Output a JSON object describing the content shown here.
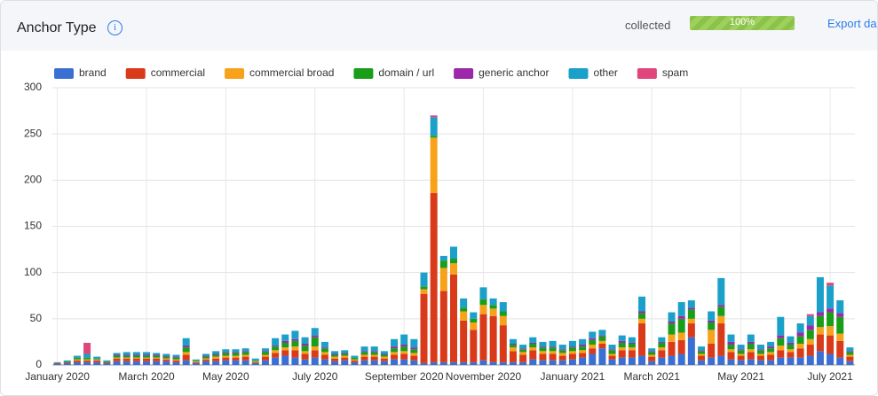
{
  "header": {
    "title": "Anchor Type",
    "status": "collected",
    "progress": "100%",
    "export": "Export da"
  },
  "chart_data": {
    "type": "bar",
    "stacked": true,
    "categories": [
      "January 2020",
      null,
      null,
      null,
      null,
      null,
      null,
      null,
      null,
      "March 2020",
      null,
      null,
      null,
      null,
      null,
      null,
      null,
      "May 2020",
      null,
      null,
      null,
      null,
      null,
      null,
      null,
      null,
      "July 2020",
      null,
      null,
      null,
      null,
      null,
      null,
      null,
      null,
      "September 2020",
      null,
      null,
      null,
      null,
      null,
      null,
      null,
      "November 2020",
      null,
      null,
      null,
      null,
      null,
      null,
      null,
      null,
      "January 2021",
      null,
      null,
      null,
      null,
      null,
      null,
      null,
      "March 2021",
      null,
      null,
      null,
      null,
      null,
      null,
      null,
      null,
      "May 2021",
      null,
      null,
      null,
      null,
      null,
      null,
      null,
      null,
      "July 2021",
      null,
      null
    ],
    "ylim": [
      0,
      300
    ],
    "yticks": [
      0,
      50,
      100,
      150,
      200,
      250,
      300
    ],
    "grid": true,
    "legend": "top",
    "series": [
      {
        "name": "brand",
        "color": "#3b6fd4",
        "values": [
          1,
          2,
          3,
          3,
          3,
          2,
          4,
          4,
          4,
          4,
          4,
          4,
          3,
          5,
          2,
          4,
          4,
          5,
          5,
          5,
          2,
          5,
          8,
          10,
          8,
          6,
          8,
          6,
          4,
          5,
          3,
          5,
          5,
          4,
          6,
          6,
          5,
          2,
          3,
          3,
          3,
          3,
          3,
          5,
          3,
          3,
          3,
          3,
          6,
          5,
          5,
          5,
          6,
          8,
          12,
          18,
          6,
          8,
          8,
          10,
          4,
          8,
          10,
          12,
          30,
          5,
          8,
          10,
          6,
          5,
          6,
          5,
          5,
          8,
          8,
          8,
          10,
          15,
          12,
          8,
          4
        ]
      },
      {
        "name": "commercial",
        "color": "#d93a1a",
        "values": [
          1,
          1,
          2,
          2,
          2,
          1,
          3,
          3,
          3,
          3,
          3,
          2,
          2,
          6,
          1,
          2,
          3,
          3,
          3,
          4,
          1,
          4,
          5,
          6,
          8,
          6,
          8,
          5,
          3,
          3,
          2,
          4,
          4,
          3,
          5,
          6,
          5,
          75,
          183,
          77,
          95,
          45,
          35,
          50,
          50,
          40,
          12,
          8,
          10,
          7,
          7,
          5,
          6,
          5,
          6,
          5,
          4,
          8,
          8,
          35,
          5,
          8,
          15,
          15,
          15,
          5,
          15,
          35,
          8,
          5,
          8,
          5,
          6,
          8,
          6,
          10,
          12,
          18,
          20,
          18,
          5
        ]
      },
      {
        "name": "commercial broad",
        "color": "#f7a21b",
        "values": [
          0,
          0,
          1,
          1,
          1,
          0,
          1,
          1,
          1,
          1,
          1,
          1,
          1,
          3,
          1,
          1,
          2,
          2,
          2,
          2,
          1,
          2,
          3,
          3,
          4,
          3,
          4,
          3,
          2,
          2,
          1,
          2,
          2,
          2,
          3,
          3,
          3,
          5,
          60,
          25,
          12,
          10,
          8,
          10,
          8,
          10,
          4,
          3,
          3,
          3,
          3,
          3,
          3,
          3,
          4,
          3,
          2,
          3,
          3,
          5,
          2,
          3,
          8,
          8,
          5,
          2,
          15,
          8,
          3,
          2,
          3,
          2,
          3,
          5,
          3,
          5,
          6,
          8,
          10,
          8,
          2
        ]
      },
      {
        "name": "domain / url",
        "color": "#1a9e1a",
        "values": [
          0,
          1,
          2,
          2,
          1,
          1,
          2,
          2,
          2,
          2,
          2,
          2,
          2,
          5,
          1,
          2,
          2,
          3,
          3,
          3,
          1,
          3,
          4,
          5,
          6,
          6,
          10,
          4,
          2,
          2,
          2,
          3,
          3,
          2,
          4,
          5,
          4,
          3,
          2,
          8,
          5,
          4,
          4,
          6,
          4,
          5,
          3,
          3,
          4,
          4,
          4,
          3,
          4,
          4,
          5,
          5,
          4,
          5,
          4,
          6,
          3,
          5,
          12,
          15,
          10,
          3,
          8,
          10,
          5,
          4,
          6,
          4,
          4,
          8,
          5,
          8,
          10,
          12,
          15,
          18,
          3
        ]
      },
      {
        "name": "generic anchor",
        "color": "#9c27a8",
        "values": [
          0,
          0,
          0,
          0,
          0,
          0,
          1,
          1,
          1,
          1,
          1,
          1,
          1,
          2,
          0,
          1,
          1,
          1,
          1,
          1,
          0,
          1,
          1,
          2,
          2,
          2,
          2,
          1,
          1,
          1,
          0,
          1,
          1,
          1,
          2,
          2,
          2,
          0,
          0,
          0,
          0,
          0,
          0,
          0,
          0,
          0,
          1,
          1,
          1,
          1,
          1,
          1,
          1,
          2,
          2,
          1,
          1,
          2,
          1,
          2,
          1,
          1,
          2,
          3,
          2,
          1,
          2,
          2,
          3,
          1,
          2,
          1,
          2,
          3,
          2,
          4,
          5,
          4,
          4,
          4,
          1
        ]
      },
      {
        "name": "other",
        "color": "#1aa0c9",
        "values": [
          1,
          1,
          2,
          4,
          2,
          1,
          2,
          3,
          3,
          3,
          2,
          2,
          2,
          8,
          1,
          2,
          3,
          3,
          3,
          3,
          2,
          3,
          8,
          7,
          9,
          7,
          8,
          6,
          3,
          3,
          2,
          5,
          5,
          3,
          8,
          11,
          9,
          15,
          20,
          5,
          13,
          10,
          7,
          13,
          7,
          10,
          5,
          4,
          6,
          5,
          6,
          5,
          6,
          6,
          7,
          6,
          5,
          6,
          6,
          16,
          3,
          5,
          10,
          15,
          8,
          4,
          10,
          29,
          8,
          5,
          8,
          5,
          5,
          20,
          7,
          10,
          10,
          38,
          25,
          14,
          4
        ]
      },
      {
        "name": "spam",
        "color": "#e0457b",
        "values": [
          0,
          0,
          0,
          12,
          0,
          0,
          0,
          0,
          0,
          0,
          0,
          0,
          0,
          0,
          0,
          0,
          0,
          0,
          0,
          0,
          0,
          0,
          0,
          0,
          0,
          0,
          0,
          0,
          0,
          0,
          0,
          0,
          0,
          0,
          0,
          0,
          0,
          0,
          2,
          0,
          0,
          0,
          0,
          0,
          0,
          0,
          0,
          0,
          0,
          0,
          0,
          0,
          0,
          0,
          0,
          0,
          0,
          0,
          0,
          0,
          0,
          0,
          0,
          0,
          0,
          0,
          0,
          0,
          0,
          0,
          0,
          0,
          0,
          0,
          0,
          0,
          2,
          0,
          3,
          0,
          0
        ]
      }
    ]
  }
}
